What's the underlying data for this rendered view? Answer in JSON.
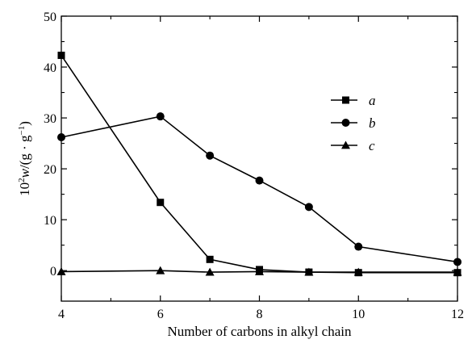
{
  "chart_data": {
    "type": "line",
    "title": "",
    "xlabel": "Number of carbons in alkyl chain",
    "ylabel": "10²w/(g · g⁻¹)",
    "ylabel_parts": {
      "sup_base": "10",
      "sup": "2",
      "var": "w",
      "unit": "/(g · g",
      "unit_exp": "−1",
      "unit_close": ")"
    },
    "xlim": [
      4,
      12
    ],
    "ylim": [
      -6,
      50
    ],
    "xticks": [
      4,
      6,
      8,
      10,
      12
    ],
    "xticks_minor": [
      5,
      7,
      9,
      11
    ],
    "yticks": [
      0,
      10,
      20,
      30,
      40,
      50
    ],
    "yticks_minor": [
      5,
      15,
      25,
      35,
      45
    ],
    "grid": false,
    "legend_position": "right-middle",
    "series": [
      {
        "name": "a",
        "marker": "square",
        "color": "#000000",
        "x": [
          4,
          6,
          7,
          8,
          9,
          10,
          12
        ],
        "y": [
          42.3,
          13.4,
          2.2,
          0.2,
          -0.3,
          -0.4,
          -0.4
        ]
      },
      {
        "name": "b",
        "marker": "circle",
        "color": "#000000",
        "x": [
          4,
          6,
          7,
          8,
          9,
          10,
          12
        ],
        "y": [
          26.2,
          30.3,
          22.6,
          17.7,
          12.5,
          4.7,
          1.7
        ]
      },
      {
        "name": "c",
        "marker": "triangle",
        "color": "#000000",
        "x": [
          4,
          6,
          7,
          8,
          9,
          10,
          12
        ],
        "y": [
          -0.2,
          0.0,
          -0.3,
          -0.2,
          -0.3,
          -0.3,
          -0.3
        ]
      }
    ]
  }
}
